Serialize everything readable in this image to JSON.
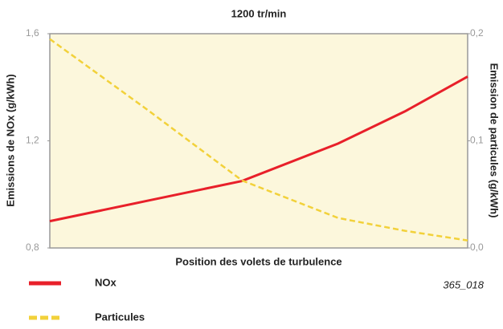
{
  "chart_data": {
    "type": "line",
    "title": "1200 tr/min",
    "x_label": "Position des volets de turbulence",
    "y_label": "Emissions de NOx (g/kWh)",
    "y2_label": "Emission de particules (g/kWh)",
    "annotation": "365_018",
    "x": [
      0,
      0.23,
      0.46,
      0.69,
      0.85,
      1
    ],
    "xlim": [
      0,
      1
    ],
    "ylim": [
      0.8,
      1.6
    ],
    "yticks": [
      {
        "value": 0.8,
        "label": "0,8"
      },
      {
        "value": 1.2,
        "label": "1,2"
      },
      {
        "value": 1.6,
        "label": "1,6"
      }
    ],
    "y2lim": [
      0,
      0.2
    ],
    "y2ticks": [
      {
        "value": 0,
        "label": "0,0"
      },
      {
        "value": 0.1,
        "label": "0,1"
      },
      {
        "value": 0.2,
        "label": "0,2"
      }
    ],
    "series": [
      {
        "name": "NOx",
        "color": "#e8202a",
        "values": [
          0.9,
          0.975,
          1.05,
          1.19,
          1.31,
          1.44
        ]
      },
      {
        "name": "Particules",
        "color": "#f2d13a",
        "axis": "y2",
        "dashed": true,
        "values": [
          0.195,
          0.13,
          0.063,
          0.028,
          0.016,
          0.007
        ]
      }
    ]
  }
}
